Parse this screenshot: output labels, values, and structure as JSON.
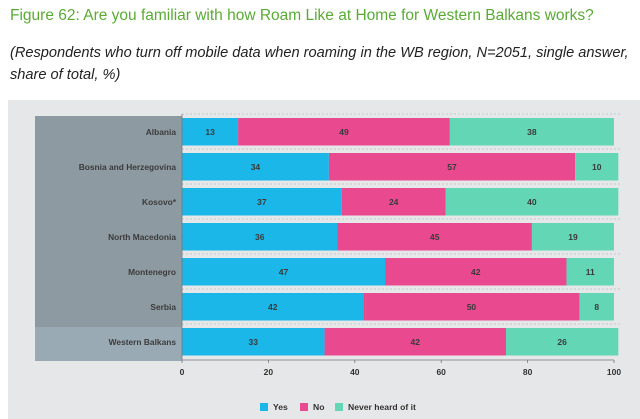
{
  "figure": {
    "title": "Figure 62: Are you familiar with how Roam Like at Home for Western Balkans works?",
    "subtitle_line1": "(Respondents who turn off mobile data when roaming in the WB region, N=2051, single answer,",
    "subtitle_line2": "share of total, %)"
  },
  "colors": {
    "yes": "#1ab7e8",
    "no": "#e8498f",
    "never": "#63d7b5",
    "title": "#5aaa35",
    "label_panel": "#8e9aa1",
    "label_panel_highlight": "#9aaab4",
    "chart_background": "#e6e7e8"
  },
  "chart_data": {
    "type": "bar",
    "orientation": "horizontal",
    "stacked": true,
    "categories": [
      "Albania",
      "Bosnia and Herzegovina",
      "Kosovo*",
      "North Macedonia",
      "Montenegro",
      "Serbia",
      "Western Balkans"
    ],
    "series": [
      {
        "name": "Yes",
        "key": "yes",
        "values": [
          13,
          34,
          37,
          36,
          47,
          42,
          33
        ]
      },
      {
        "name": "No",
        "key": "no",
        "values": [
          49,
          57,
          24,
          45,
          42,
          50,
          42
        ]
      },
      {
        "name": "Never heard of it",
        "key": "never",
        "values": [
          38,
          10,
          40,
          19,
          11,
          8,
          26
        ]
      }
    ],
    "xlim": [
      0,
      100
    ],
    "xticks": [
      0,
      20,
      40,
      60,
      80,
      100
    ],
    "xlabel": "",
    "ylabel": "",
    "title": "Are you familiar with how Roam Like at Home for Western Balkans works?",
    "legend_position": "bottom"
  }
}
